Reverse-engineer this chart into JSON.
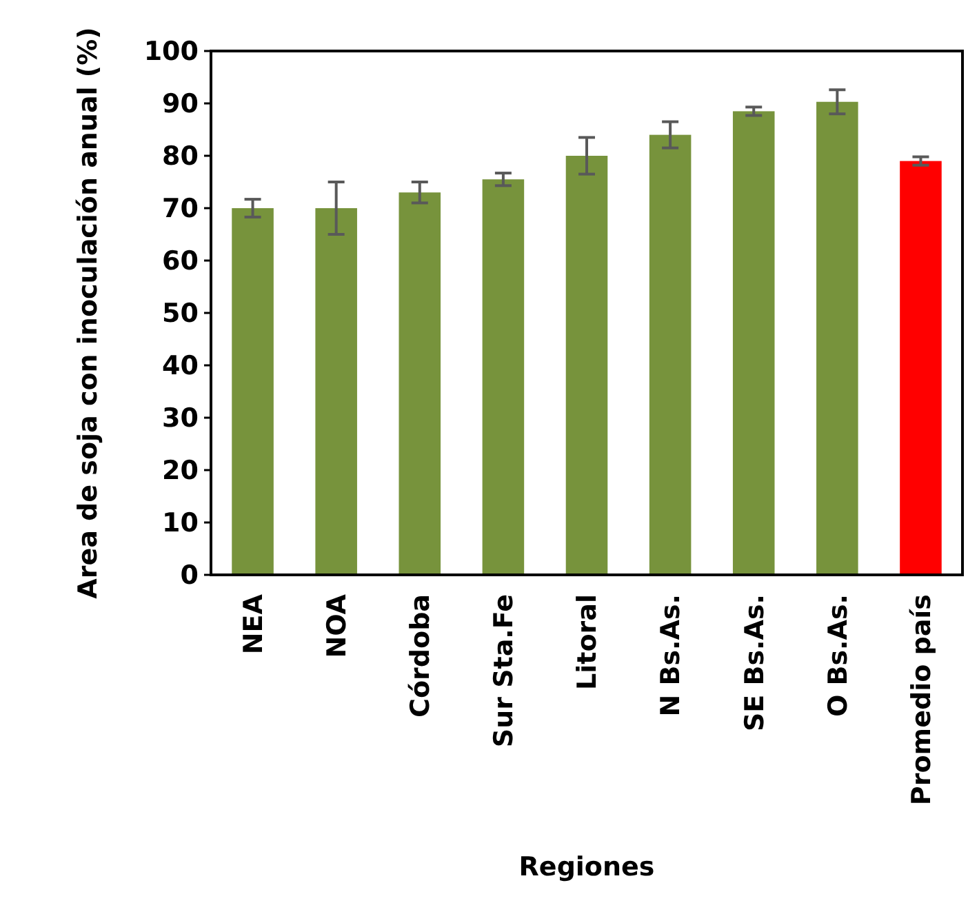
{
  "chart_data": {
    "type": "bar",
    "xlabel": "Regiones",
    "ylabel": "Area de soja con inoculación anual (%)",
    "categories": [
      "NEA",
      "NOA",
      "Córdoba",
      "Sur Sta.Fe",
      "Litoral",
      "N Bs.As.",
      "SE Bs.As.",
      "O  Bs.As.",
      "Promedio país"
    ],
    "values": [
      70,
      70,
      73,
      75.5,
      80,
      84,
      88.5,
      90.3,
      79
    ],
    "errors": [
      1.7,
      5,
      2,
      1.2,
      3.5,
      2.5,
      0.8,
      2.3,
      0.8
    ],
    "colors": [
      "#77933c",
      "#77933c",
      "#77933c",
      "#77933c",
      "#77933c",
      "#77933c",
      "#77933c",
      "#77933c",
      "#ff0000"
    ],
    "ylim": [
      0,
      100
    ],
    "yticks": [
      0,
      10,
      20,
      30,
      40,
      50,
      60,
      70,
      80,
      90,
      100
    ]
  }
}
